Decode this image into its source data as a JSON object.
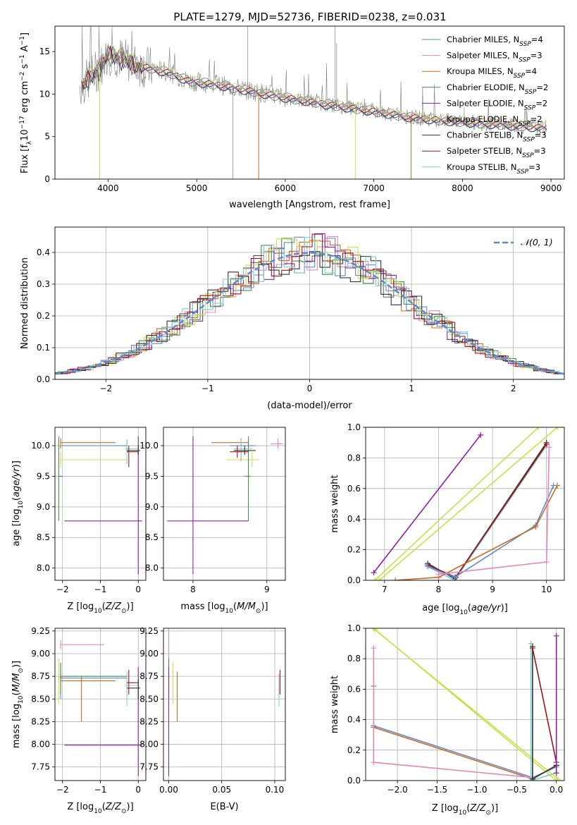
{
  "figure_title": "PLATE=1279, MJD=52736, FIBERID=0238, z=0.031",
  "colors": {
    "chabrier_miles": "#5b8bd6",
    "salpeter_miles": "#e785c0",
    "kroupa_miles": "#cd6a1f",
    "chabrier_elodie": "#4a8a4a",
    "salpeter_elodie": "#8c1fa8",
    "kroupa_elodie": "#c8e04a",
    "chabrier_stelib": "#333333",
    "salpeter_stelib": "#a01414",
    "kroupa_stelib": "#7fcfcf",
    "observed": "#808080",
    "normal": "#5b8bd6",
    "grid": "#b0b0b0"
  },
  "chart_data": [
    {
      "panel": "spectrum",
      "type": "line",
      "title": "PLATE=1279, MJD=52736, FIBERID=0238, z=0.031",
      "xlabel": "wavelength [Angstrom, rest frame]",
      "ylabel": "Flux [f_λ 10^-17 erg cm^-2 s^-1 A^-1]",
      "xlim": [
        3400,
        9150
      ],
      "ylim": [
        0,
        18
      ],
      "xticks": [
        "4000",
        "5000",
        "6000",
        "7000",
        "8000",
        "9000"
      ],
      "yticks": [
        "0",
        "5",
        "10",
        "15"
      ],
      "grid": false,
      "legend_position": "upper-right",
      "x": [
        3700,
        3800,
        3900,
        4000,
        4100,
        4200,
        4300,
        4500,
        4700,
        4900,
        5100,
        5300,
        5500,
        5700,
        6000,
        6300,
        6600,
        7000,
        7400,
        7800,
        8200,
        8600,
        9000
      ],
      "y": [
        11.0,
        12.0,
        13.0,
        14.8,
        14.4,
        14.0,
        13.5,
        13.0,
        12.5,
        11.6,
        11.3,
        11.0,
        10.6,
        10.2,
        9.6,
        9.1,
        8.6,
        8.0,
        7.3,
        6.9,
        6.6,
        6.3,
        6.0
      ],
      "series": [
        {
          "name": "Chabrier MILES, N_SSP=4",
          "key": "chabrier_miles"
        },
        {
          "name": "Salpeter MILES, N_SSP=3",
          "key": "salpeter_miles"
        },
        {
          "name": "Kroupa MILES, N_SSP=4",
          "key": "kroupa_miles"
        },
        {
          "name": "Chabrier ELODIE, N_SSP=2",
          "key": "chabrier_elodie"
        },
        {
          "name": "Salpeter ELODIE, N_SSP=2",
          "key": "salpeter_elodie"
        },
        {
          "name": "Kroupa ELODIE, N_SSP=2",
          "key": "kroupa_elodie"
        },
        {
          "name": "Chabrier STELIB, N_SSP=3",
          "key": "chabrier_stelib"
        },
        {
          "name": "Salpeter STELIB, N_SSP=3",
          "key": "salpeter_stelib"
        },
        {
          "name": "Kroupa STELIB, N_SSP=3",
          "key": "kroupa_stelib"
        }
      ]
    },
    {
      "panel": "residuals",
      "type": "line",
      "xlabel": "(data-model)/error",
      "ylabel": "Normed distribution",
      "xlim": [
        -2.5,
        2.5
      ],
      "ylim": [
        0,
        0.48
      ],
      "xticks": [
        "−2",
        "−1",
        "0",
        "1",
        "2"
      ],
      "yticks": [
        "0.0",
        "0.1",
        "0.2",
        "0.3",
        "0.4"
      ],
      "grid": true,
      "legend_position": "upper-right",
      "legend": [
        "𝒩(0, 1)"
      ]
    },
    {
      "panel": "age-vs-Z",
      "type": "scatter",
      "xlabel": "Z [log10(Z/Z⊙)]",
      "ylabel": "age  [log10(age/yr)]",
      "xlim": [
        -2.2,
        0.2
      ],
      "ylim": [
        7.8,
        10.3
      ],
      "xticks": [
        "−2",
        "−1",
        "0"
      ],
      "yticks": [
        "8.0",
        "8.5",
        "9.0",
        "9.5",
        "10.0"
      ],
      "grid": true
    },
    {
      "panel": "age-vs-mass",
      "type": "scatter",
      "xlabel": "mass [log10(M/M⊙)]",
      "xlim": [
        7.6,
        9.25
      ],
      "ylim": [
        7.8,
        10.3
      ],
      "xticks": [
        "8",
        "9"
      ],
      "yticks": [
        "8.0",
        "8.5",
        "9.0",
        "9.5",
        "10.0"
      ],
      "grid": true
    },
    {
      "panel": "weight-vs-age",
      "type": "line",
      "xlabel": "age  [log10(age/yr)]",
      "ylabel": "mass weight",
      "xlim": [
        6.65,
        10.33
      ],
      "ylim": [
        0,
        1
      ],
      "xticks": [
        "7",
        "8",
        "9",
        "10"
      ],
      "yticks": [
        "0.0",
        "0.2",
        "0.4",
        "0.6",
        "0.8",
        "1.0"
      ],
      "grid": true
    },
    {
      "panel": "mass-vs-Z",
      "type": "scatter",
      "xlabel": "Z [log10(Z/Z⊙)]",
      "ylabel": "mass [log10(M/M⊙)]",
      "xlim": [
        -2.2,
        0.2
      ],
      "ylim": [
        7.6,
        9.28
      ],
      "xticks": [
        "−2",
        "−1",
        "0"
      ],
      "yticks": [
        "7.75",
        "8.00",
        "8.25",
        "8.50",
        "8.75",
        "9.00",
        "9.25"
      ],
      "grid": true
    },
    {
      "panel": "mass-vs-ebv",
      "type": "scatter",
      "xlabel": "E(B-V)",
      "xlim": [
        -0.005,
        0.11
      ],
      "ylim": [
        7.6,
        9.28
      ],
      "xticks": [
        "0.00",
        "0.05",
        "0.10"
      ],
      "yticks": [
        "7.75",
        "8.00",
        "8.25",
        "8.50",
        "8.75",
        "9.00",
        "9.25"
      ],
      "grid": true
    },
    {
      "panel": "weight-vs-Z",
      "type": "line",
      "xlabel": "Z [log10(Z/Z⊙)]",
      "ylabel": "mass weight",
      "xlim": [
        -2.4,
        0.1
      ],
      "ylim": [
        0,
        1
      ],
      "xticks": [
        "−2.0",
        "−1.5",
        "−1.0",
        "−0.5",
        "0.0"
      ],
      "yticks": [
        "0.0",
        "0.2",
        "0.4",
        "0.6",
        "0.8",
        "1.0"
      ],
      "grid": true
    }
  ]
}
